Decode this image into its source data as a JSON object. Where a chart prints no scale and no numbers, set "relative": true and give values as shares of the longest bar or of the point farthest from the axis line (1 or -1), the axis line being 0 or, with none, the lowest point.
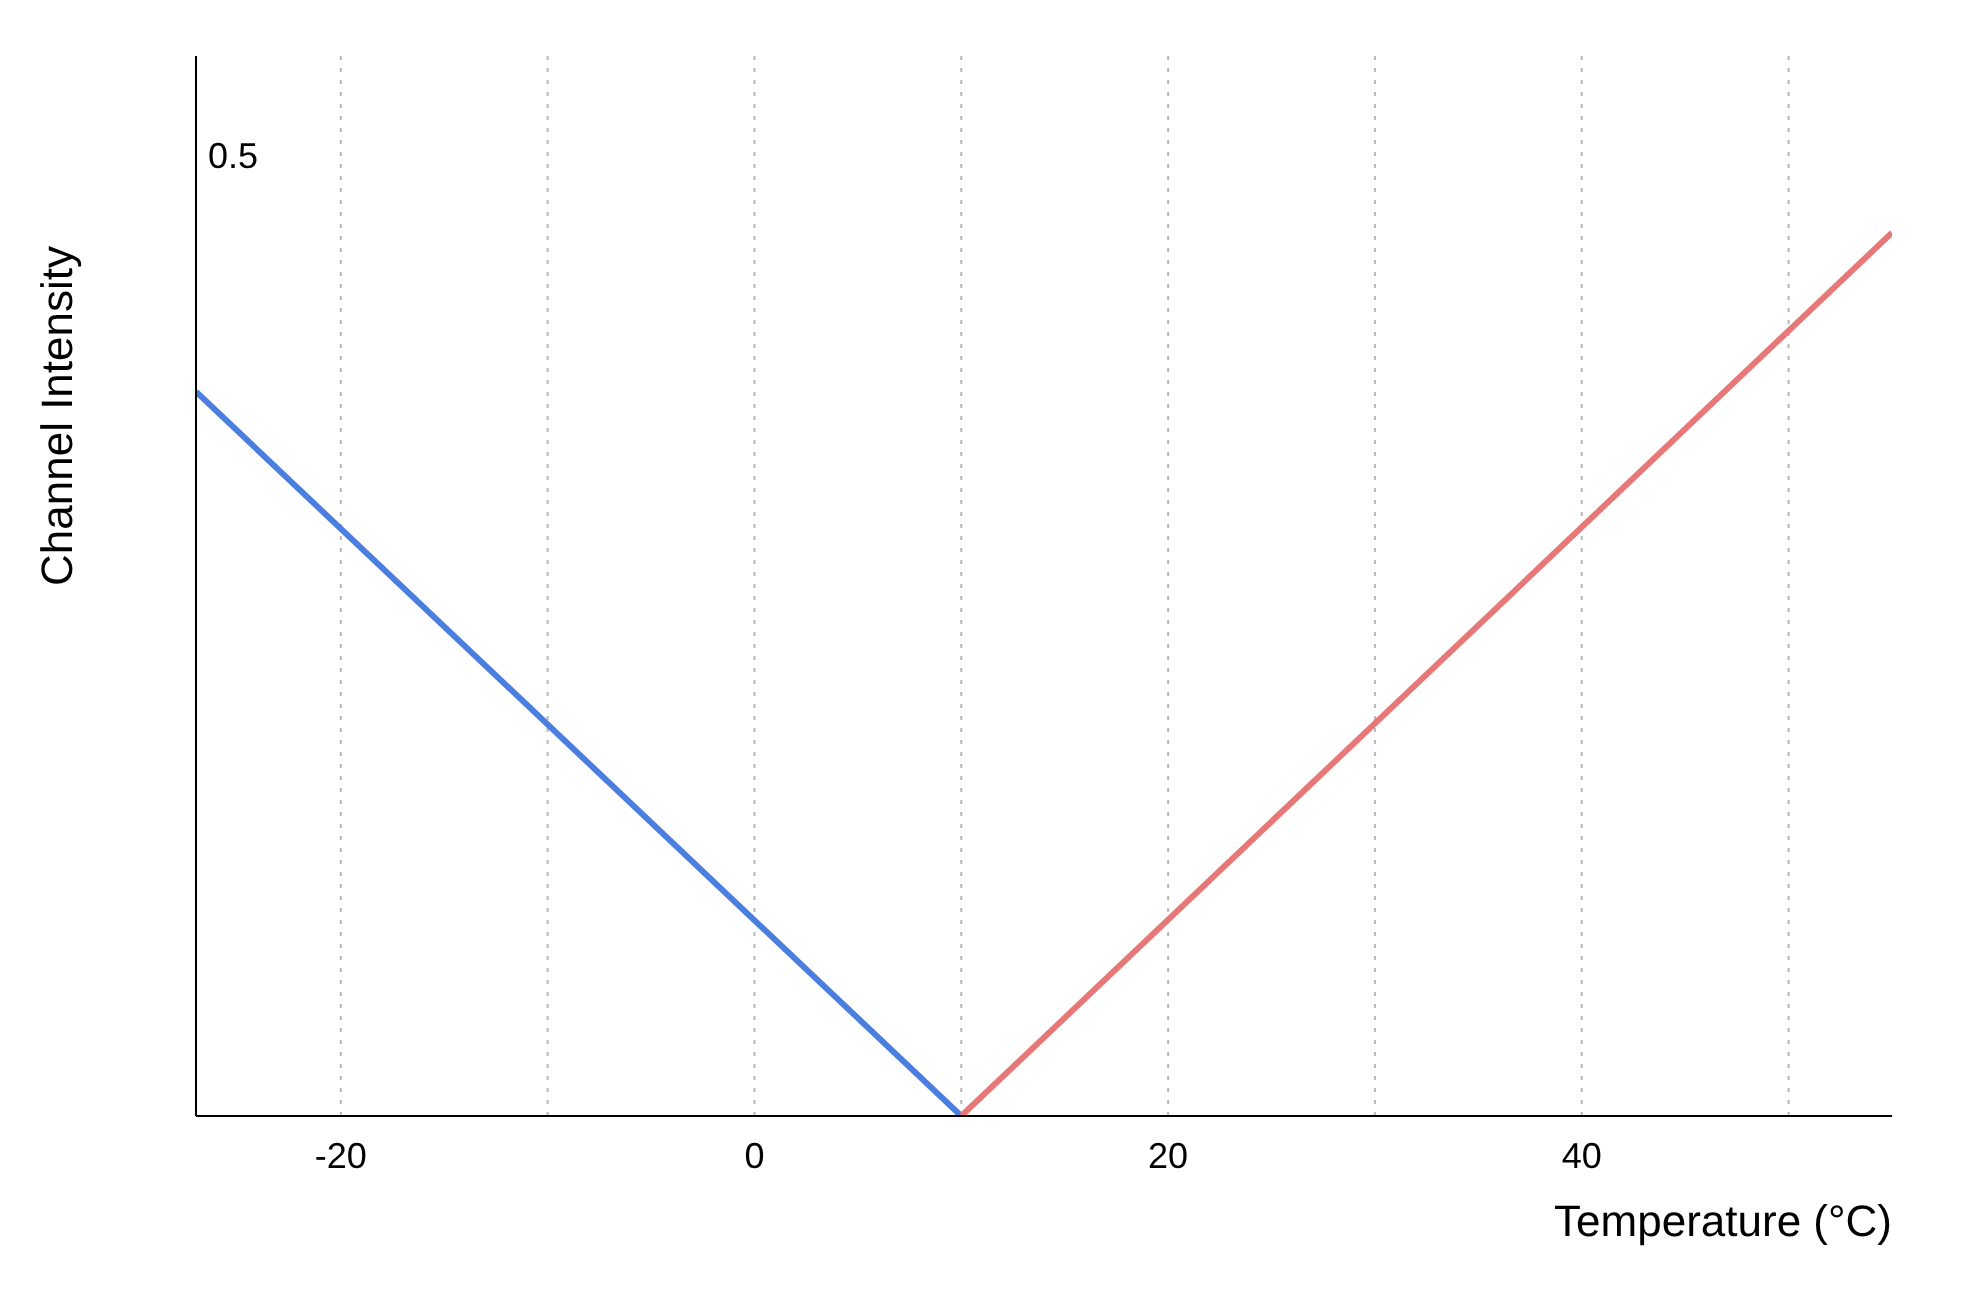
{
  "chart_data": {
    "type": "line",
    "xlabel": "Temperature (°C)",
    "ylabel": "Channel Intensity",
    "annotations": [
      "0.5"
    ],
    "series": [
      {
        "color": "#4a7fe0",
        "x": [
          -27,
          10
        ],
        "values": [
          0.82,
          0
        ]
      },
      {
        "color": "#e87878",
        "x": [
          10,
          55
        ],
        "values": [
          0,
          1
        ]
      }
    ],
    "relative": true,
    "xlim": [
      -27,
      55
    ],
    "xticks": [
      -20,
      {
        "value": -10,
        "label": null
      },
      0,
      {
        "value": 10,
        "label": null
      },
      20,
      {
        "value": 30,
        "label": null
      },
      40,
      {
        "value": 50,
        "label": null
      }
    ],
    "grid": "x",
    "marker": "none",
    "line_style": "solid",
    "legend": false
  }
}
